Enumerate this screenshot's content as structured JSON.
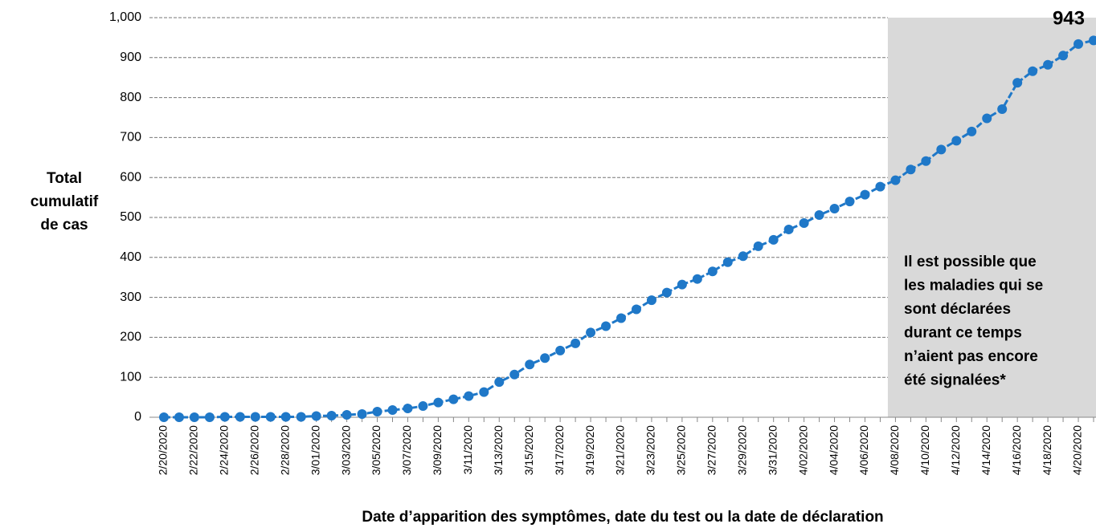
{
  "chart_data": {
    "type": "line",
    "x_label": "Date d’apparition des symptômes, date du test ou la date de déclaration",
    "y_label": [
      "Total",
      "cumulatif",
      "de cas"
    ],
    "categories": [
      "2/20/2020",
      null,
      "2/22/2020",
      null,
      "2/24/2020",
      null,
      "2/26/2020",
      null,
      "2/28/2020",
      null,
      "3/01/2020",
      null,
      "3/03/2020",
      null,
      "3/05/2020",
      null,
      "3/07/2020",
      null,
      "3/09/2020",
      null,
      "3/11/2020",
      null,
      "3/13/2020",
      null,
      "3/15/2020",
      null,
      "3/17/2020",
      null,
      "3/19/2020",
      null,
      "3/21/2020",
      null,
      "3/23/2020",
      null,
      "3/25/2020",
      null,
      "3/27/2020",
      null,
      "3/29/2020",
      null,
      "3/31/2020",
      null,
      "4/02/2020",
      null,
      "4/04/2020",
      null,
      "4/06/2020",
      null,
      "4/08/2020",
      null,
      "4/10/2020",
      null,
      "4/12/2020",
      null,
      "4/14/2020",
      null,
      "4/16/2020",
      null,
      "4/18/2020",
      null,
      "4/20/2020",
      null
    ],
    "series": [
      {
        "color": "#1f78c8",
        "values": [
          0,
          0,
          0,
          0,
          1,
          1,
          1,
          1,
          1,
          1,
          3,
          4,
          6,
          8,
          14,
          18,
          22,
          28,
          37,
          45,
          53,
          63,
          88,
          107,
          132,
          148,
          167,
          185,
          212,
          228,
          248,
          270,
          293,
          312,
          332,
          346,
          365,
          388,
          403,
          428,
          444,
          470,
          486,
          506,
          522,
          540,
          557,
          577,
          593,
          620,
          641,
          670,
          692,
          715,
          748,
          771,
          837,
          866,
          882,
          905,
          934,
          943
        ]
      }
    ],
    "ylim": [
      0,
      1000
    ],
    "yticks": [
      0,
      100,
      200,
      300,
      400,
      500,
      600,
      700,
      800,
      900,
      {
        "value": 1000,
        "label": "1,000"
      }
    ],
    "grid": true,
    "highlight_start": "4/08/2020",
    "highlight_color": "#d9d9d9",
    "annotation": [
      "Il est possible que",
      "les maladies qui se",
      "sont déclarées",
      "durant ce temps",
      "n’aient pas encore",
      "été signalées*"
    ]
  }
}
